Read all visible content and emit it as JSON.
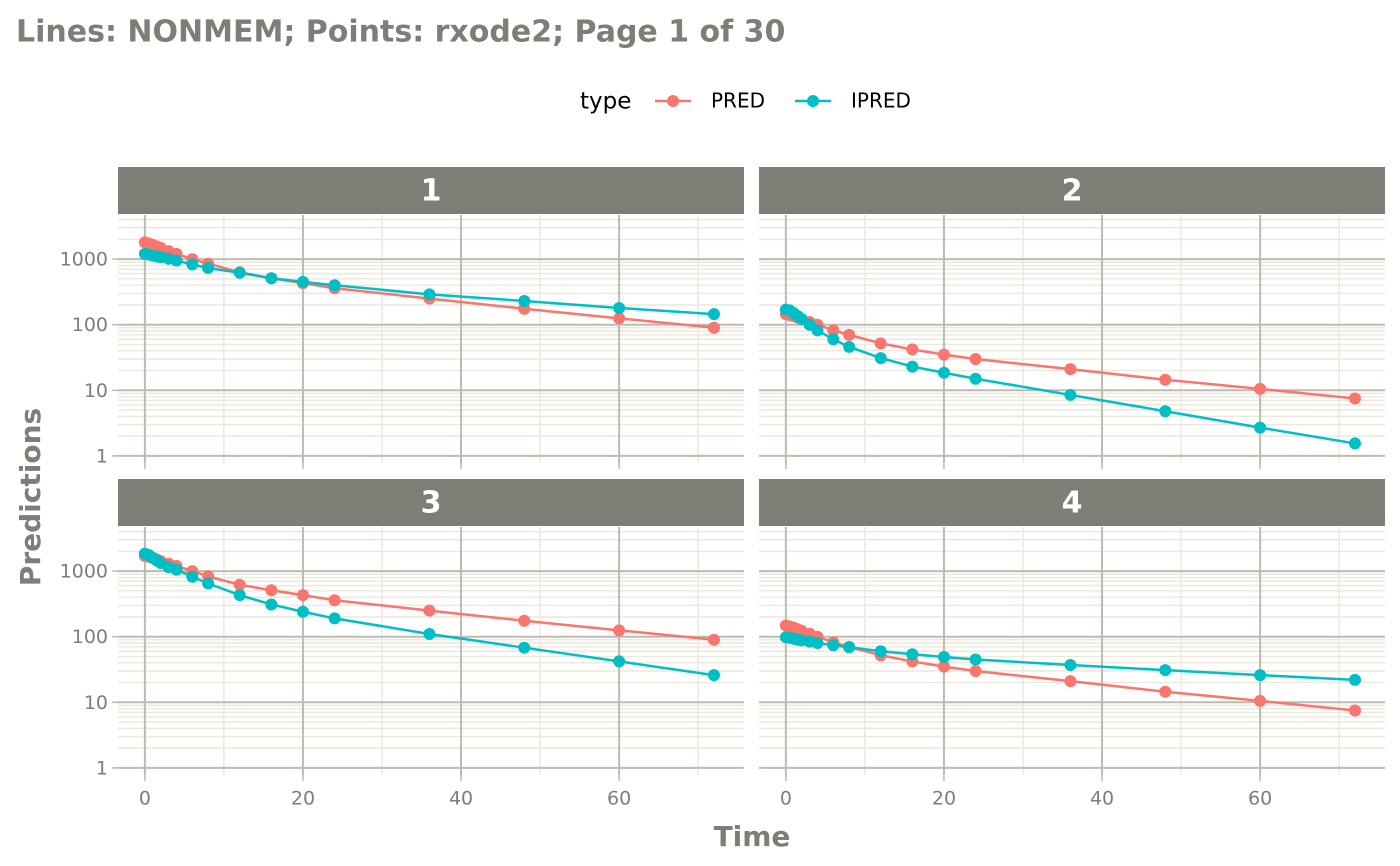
{
  "title": "Lines: NONMEM; Points: rxode2; Page 1 of 30",
  "x_label": "Time",
  "y_label": "Predictions",
  "legend_title": "type",
  "chart_data": [
    {
      "type": "line",
      "facet": "1",
      "x": [
        0,
        0.5,
        1,
        1.5,
        2,
        3,
        4,
        6,
        8,
        12,
        16,
        20,
        24,
        36,
        48,
        60,
        72
      ],
      "series": [
        {
          "name": "PRED",
          "color": "#F8766D",
          "values": [
            1800,
            1720,
            1650,
            1560,
            1480,
            1320,
            1200,
            1000,
            850,
            630,
            510,
            430,
            360,
            250,
            175,
            125,
            90
          ]
        },
        {
          "name": "IPRED",
          "color": "#00BFC4",
          "values": [
            1200,
            1170,
            1130,
            1100,
            1070,
            1010,
            950,
            830,
            730,
            620,
            510,
            450,
            400,
            290,
            230,
            180,
            145
          ]
        }
      ],
      "xlim": [
        -3.4,
        75.8
      ],
      "xticks": [
        0,
        20,
        40,
        60
      ],
      "x_minor_ticks": [
        10,
        30,
        50,
        70
      ],
      "ylim": [
        0.78,
        4700
      ],
      "yticks": [
        1,
        10,
        100,
        1000
      ],
      "log_y": true,
      "y_minor_ticks": [
        2,
        3,
        4,
        5,
        6,
        7,
        8,
        9,
        20,
        30,
        40,
        50,
        60,
        70,
        80,
        90,
        200,
        300,
        400,
        500,
        600,
        700,
        800,
        900,
        2000,
        3000,
        4000
      ]
    },
    {
      "type": "line",
      "facet": "2",
      "x": [
        0,
        0.5,
        1,
        1.5,
        2,
        3,
        4,
        6,
        8,
        12,
        16,
        20,
        24,
        36,
        48,
        60,
        72
      ],
      "series": [
        {
          "name": "PRED",
          "color": "#F8766D",
          "values": [
            145,
            140,
            135,
            128,
            122,
            110,
            100,
            82,
            70,
            52,
            42,
            35,
            30,
            21,
            14.5,
            10.5,
            7.5
          ]
        },
        {
          "name": "IPRED",
          "color": "#00BFC4",
          "values": [
            170,
            165,
            150,
            135,
            122,
            100,
            82,
            60,
            46,
            31,
            23,
            18.5,
            15,
            8.5,
            4.8,
            2.7,
            1.55
          ]
        }
      ],
      "xlim": [
        -3.4,
        75.8
      ],
      "xticks": [
        0,
        20,
        40,
        60
      ],
      "x_minor_ticks": [
        10,
        30,
        50,
        70
      ],
      "ylim": [
        0.78,
        4700
      ],
      "yticks": [
        1,
        10,
        100,
        1000
      ],
      "log_y": true,
      "y_minor_ticks": [
        2,
        3,
        4,
        5,
        6,
        7,
        8,
        9,
        20,
        30,
        40,
        50,
        60,
        70,
        80,
        90,
        200,
        300,
        400,
        500,
        600,
        700,
        800,
        900,
        2000,
        3000,
        4000
      ]
    },
    {
      "type": "line",
      "facet": "3",
      "x": [
        0,
        0.5,
        1,
        1.5,
        2,
        3,
        4,
        6,
        8,
        12,
        16,
        20,
        24,
        36,
        48,
        60,
        72
      ],
      "series": [
        {
          "name": "PRED",
          "color": "#F8766D",
          "values": [
            1700,
            1650,
            1580,
            1500,
            1420,
            1300,
            1200,
            1000,
            830,
            620,
            510,
            430,
            360,
            250,
            175,
            125,
            90
          ]
        },
        {
          "name": "IPRED",
          "color": "#00BFC4",
          "values": [
            1850,
            1750,
            1600,
            1450,
            1330,
            1150,
            1050,
            820,
            650,
            430,
            310,
            240,
            190,
            110,
            68,
            42,
            26
          ]
        }
      ],
      "xlim": [
        -3.4,
        75.8
      ],
      "xticks": [
        0,
        20,
        40,
        60
      ],
      "x_minor_ticks": [
        10,
        30,
        50,
        70
      ],
      "ylim": [
        0.78,
        4700
      ],
      "yticks": [
        1,
        10,
        100,
        1000
      ],
      "log_y": true,
      "y_minor_ticks": [
        2,
        3,
        4,
        5,
        6,
        7,
        8,
        9,
        20,
        30,
        40,
        50,
        60,
        70,
        80,
        90,
        200,
        300,
        400,
        500,
        600,
        700,
        800,
        900,
        2000,
        3000,
        4000
      ]
    },
    {
      "type": "line",
      "facet": "4",
      "x": [
        0,
        0.5,
        1,
        1.5,
        2,
        3,
        4,
        6,
        8,
        12,
        16,
        20,
        24,
        36,
        48,
        60,
        72
      ],
      "series": [
        {
          "name": "PRED",
          "color": "#F8766D",
          "values": [
            148,
            143,
            137,
            130,
            123,
            111,
            100,
            82,
            70,
            52,
            42,
            35,
            30,
            21,
            14.5,
            10.5,
            7.5
          ]
        },
        {
          "name": "IPRED",
          "color": "#00BFC4",
          "values": [
            98,
            96,
            93,
            90,
            88,
            84,
            80,
            74,
            69,
            60,
            54,
            49,
            45,
            37,
            31,
            26,
            22
          ]
        }
      ],
      "xlim": [
        -3.4,
        75.8
      ],
      "xticks": [
        0,
        20,
        40,
        60
      ],
      "x_minor_ticks": [
        10,
        30,
        50,
        70
      ],
      "ylim": [
        0.78,
        4700
      ],
      "yticks": [
        1,
        10,
        100,
        1000
      ],
      "log_y": true,
      "y_minor_ticks": [
        2,
        3,
        4,
        5,
        6,
        7,
        8,
        9,
        20,
        30,
        40,
        50,
        60,
        70,
        80,
        90,
        200,
        300,
        400,
        500,
        600,
        700,
        800,
        900,
        2000,
        3000,
        4000
      ]
    }
  ]
}
